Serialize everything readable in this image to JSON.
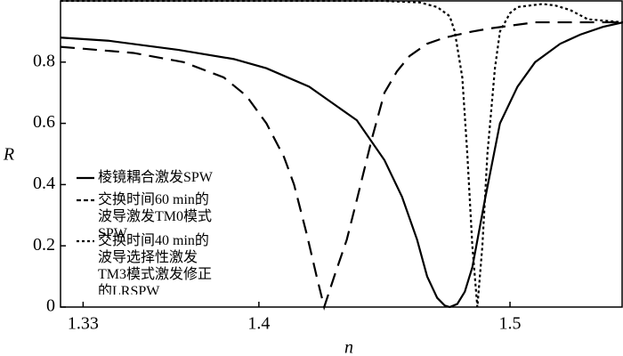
{
  "chart_data": {
    "type": "line",
    "x_label": "n",
    "y_label": "R",
    "xlim": [
      1.321,
      1.545
    ],
    "ylim": [
      0,
      1.0
    ],
    "xticks": [
      1.33,
      1.4,
      1.5
    ],
    "yticks": [
      0,
      0.2,
      0.4,
      0.6,
      0.8
    ],
    "grid": false,
    "legend": "lower left",
    "series": [
      {
        "name": "棱镜耦合激发SPW",
        "color": "#000000",
        "dash": "solid",
        "x": [
          1.321,
          1.34,
          1.368,
          1.39,
          1.403,
          1.42,
          1.439,
          1.45,
          1.457,
          1.463,
          1.467,
          1.471,
          1.474,
          1.476,
          1.479,
          1.482,
          1.485,
          1.49,
          1.496,
          1.503,
          1.51,
          1.52,
          1.528,
          1.537,
          1.545
        ],
        "values": [
          0.88,
          0.87,
          0.84,
          0.81,
          0.78,
          0.72,
          0.61,
          0.48,
          0.36,
          0.22,
          0.1,
          0.03,
          0.005,
          0,
          0.01,
          0.05,
          0.13,
          0.35,
          0.6,
          0.72,
          0.8,
          0.86,
          0.89,
          0.915,
          0.93
        ]
      },
      {
        "name": "交换时间60 min的波导激发TM0模式SPW",
        "color": "#000000",
        "dash": "dashed",
        "x": [
          1.321,
          1.35,
          1.37,
          1.386,
          1.395,
          1.403,
          1.41,
          1.414,
          1.419,
          1.423,
          1.426,
          1.43,
          1.435,
          1.439,
          1.445,
          1.45,
          1.455,
          1.46,
          1.467,
          1.474,
          1.485,
          1.492,
          1.51,
          1.545
        ],
        "values": [
          0.85,
          0.83,
          0.8,
          0.75,
          0.69,
          0.6,
          0.49,
          0.4,
          0.24,
          0.1,
          0,
          0.1,
          0.22,
          0.35,
          0.55,
          0.7,
          0.77,
          0.82,
          0.86,
          0.88,
          0.9,
          0.91,
          0.93,
          0.93
        ]
      },
      {
        "name": "交换时间40 min的波导选择性激发TM3模式激发修正的LRSPW",
        "color": "#000000",
        "dash": "dotted",
        "x": [
          1.321,
          1.45,
          1.464,
          1.471,
          1.476,
          1.478,
          1.481,
          1.483,
          1.485,
          1.487,
          1.489,
          1.491,
          1.494,
          1.496,
          1.5,
          1.503,
          1.508,
          1.513,
          1.518,
          1.524,
          1.531,
          1.545
        ],
        "values": [
          1.0,
          1.0,
          0.995,
          0.98,
          0.95,
          0.9,
          0.75,
          0.5,
          0.2,
          0,
          0.2,
          0.5,
          0.78,
          0.9,
          0.96,
          0.98,
          0.985,
          0.99,
          0.985,
          0.97,
          0.94,
          0.93
        ]
      }
    ]
  }
}
